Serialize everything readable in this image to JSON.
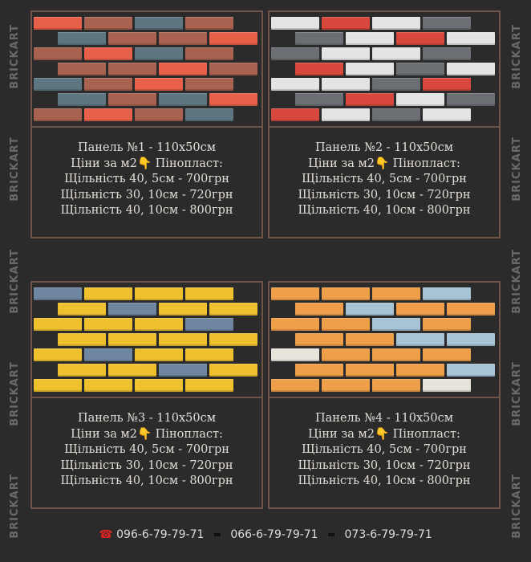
{
  "watermark": "BRICKART",
  "palette": {
    "r": "#e9604a",
    "b": "#a8624f",
    "g": "#5e7681",
    "w": "#e4e4e4",
    "s": "#6b6f73",
    "d": "#d9483c",
    "y": "#f0c12e",
    "u": "#6f86a0",
    "o": "#ef9f4a",
    "l": "#a9c3d6",
    "c": "#e8e4dc"
  },
  "panels": [
    {
      "title": "Панель №1 - 110х50см",
      "prices_label": "Ціни за м2👇 Пінопласт:",
      "lines": [
        "Щільність 40, 5см - 700грн",
        "Щільність 30, 10см - 720грн",
        "Щільність 40, 10см - 800грн"
      ],
      "bricks": [
        "rbgb",
        "gbbr",
        "brgb",
        "bbrb",
        "gbrb",
        "gbgr",
        "brbg"
      ]
    },
    {
      "title": "Панель №2 - 110х50см",
      "prices_label": "Ціни за м2👇 Пінопласт:",
      "lines": [
        "Щільність 40, 5см - 700грн",
        "Щільність 30, 10см - 720грн",
        "Щільність 40, 10см - 800грн"
      ],
      "bricks": [
        "wdws",
        "swdw",
        "swws",
        "dwsw",
        "wwsd",
        "sdws",
        "dwsw"
      ]
    },
    {
      "title": "Панель №3 - 110х50см",
      "prices_label": "Ціни за м2👇 Пінопласт:",
      "lines": [
        "Щільність 40, 5см - 700грн",
        "Щільність 30, 10см - 720грн",
        "Щільність 40, 10см - 800грн"
      ],
      "bricks": [
        "uyyy",
        "yuyy",
        "yyyu",
        "yyyy",
        "yuyy",
        "yyuy",
        "yyyy"
      ]
    },
    {
      "title": "Панель №4 - 110х50см",
      "prices_label": "Ціни за м2👇 Пінопласт:",
      "lines": [
        "Щільність 40, 5см - 700грн",
        "Щільність 30, 10см - 720грн",
        "Щільність 40, 10см - 800грн"
      ],
      "bricks": [
        "oool",
        "oloo",
        "oolo",
        "ooll",
        "cooo",
        "oool",
        "oooc"
      ]
    }
  ],
  "contacts": {
    "phones": [
      "096-6-79-79-71",
      "066-6-79-79-71",
      "073-6-79-79-71"
    ]
  }
}
